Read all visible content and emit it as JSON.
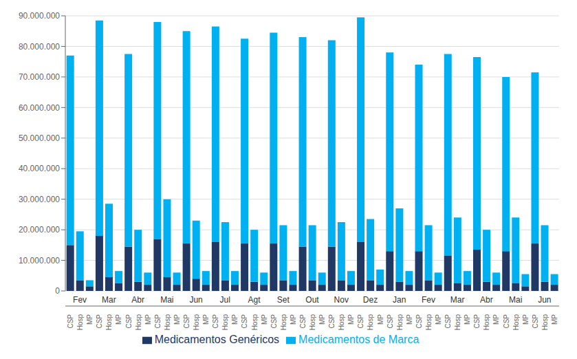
{
  "chart_data": {
    "type": "bar",
    "stacked": true,
    "grid": true,
    "legend": "bottom",
    "categories": [
      "CSP",
      "Hosp",
      "MP",
      "CSP",
      "Hosp",
      "MP",
      "CSP",
      "Hosp",
      "MP",
      "CSP",
      "Hosp",
      "MP",
      "CSP",
      "Hosp",
      "MP",
      "CSP",
      "Hosp",
      "MP",
      "CSP",
      "Hosp",
      "MP",
      "CSP",
      "Hosp",
      "MP",
      "CSP",
      "Hosp",
      "MP",
      "CSP",
      "Hosp",
      "MP",
      "CSP",
      "Hosp",
      "MP",
      "CSP",
      "Hosp",
      "MP",
      "CSP",
      "Hosp",
      "MP",
      "CSP",
      "Hosp",
      "MP",
      "CSP",
      "Hosp",
      "MP",
      "CSP",
      "Hosp",
      "MP",
      "CSP",
      "Hosp",
      "MP"
    ],
    "groups": [
      "Fev",
      "Mar",
      "Abr",
      "Mai",
      "Jun",
      "Jul",
      "Agt",
      "Set",
      "Out",
      "Nov",
      "Dez",
      "Jan",
      "Fev",
      "Mar",
      "Abr",
      "Mai",
      "Jun"
    ],
    "series": [
      {
        "name": "Medicamentos Genéricos",
        "color": "#1F3864",
        "values": [
          15000000,
          3500000,
          1500000,
          18000000,
          4500000,
          2500000,
          14500000,
          3000000,
          2000000,
          17000000,
          4500000,
          2000000,
          15500000,
          4000000,
          2000000,
          16000000,
          3500000,
          2000000,
          15500000,
          3000000,
          2000000,
          15500000,
          3500000,
          2000000,
          14500000,
          3500000,
          2000000,
          14500000,
          3500000,
          2000000,
          16000000,
          3500000,
          2000000,
          13000000,
          3000000,
          2000000,
          13000000,
          3500000,
          2000000,
          11500000,
          2500000,
          2000000,
          13500000,
          3000000,
          2000000,
          13000000,
          2500000,
          1500000,
          15500000,
          3000000,
          2000000
        ]
      },
      {
        "name": "Medicamentos de Marca",
        "color": "#00B0F0",
        "values": [
          62000000,
          16000000,
          2000000,
          70500000,
          24000000,
          4000000,
          63000000,
          17000000,
          4000000,
          71000000,
          25500000,
          4000000,
          69500000,
          19000000,
          4500000,
          70500000,
          19000000,
          4500000,
          67000000,
          17000000,
          4000000,
          69000000,
          18000000,
          4500000,
          68500000,
          18000000,
          4000000,
          67500000,
          19000000,
          4500000,
          73500000,
          20000000,
          5000000,
          65000000,
          24000000,
          4500000,
          61000000,
          18000000,
          4000000,
          66000000,
          21500000,
          4500000,
          63000000,
          17000000,
          4000000,
          57000000,
          21500000,
          4000000,
          56000000,
          18500000,
          3500000
        ]
      }
    ],
    "ylim": [
      0,
      90000000
    ],
    "yticks": [
      0,
      {
        "value": 10000000,
        "label": "10.000.000"
      },
      {
        "value": 20000000,
        "label": "20.000.000"
      },
      {
        "value": 30000000,
        "label": "30.000.000"
      },
      {
        "value": 40000000,
        "label": "40.000.000"
      },
      {
        "value": 50000000,
        "label": "50.000.000"
      },
      {
        "value": 60000000,
        "label": "60.000.000"
      },
      {
        "value": 70000000,
        "label": "70.000.000"
      },
      {
        "value": 80000000,
        "label": "80.000.000"
      },
      {
        "value": 90000000,
        "label": "90.000.000"
      }
    ]
  }
}
